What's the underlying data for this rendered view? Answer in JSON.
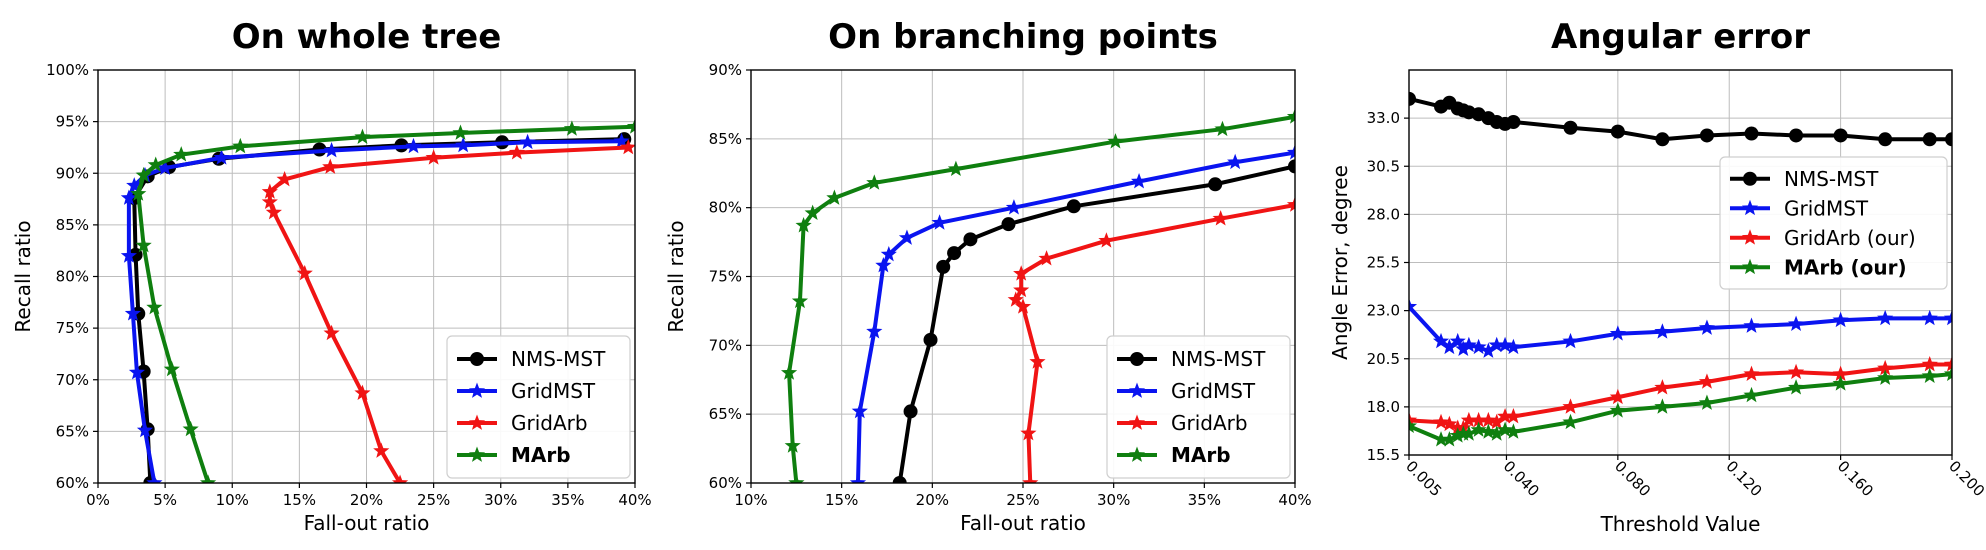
{
  "chart_data": [
    {
      "type": "line",
      "title": "On whole tree",
      "xlabel": "Fall-out ratio",
      "ylabel": "Recall ratio",
      "xlim": [
        0,
        40
      ],
      "ylim": [
        60,
        100
      ],
      "x_ticks": [
        0,
        5,
        10,
        15,
        20,
        25,
        30,
        35,
        40
      ],
      "x_tick_labels": [
        "0%",
        "5%",
        "10%",
        "15%",
        "20%",
        "25%",
        "30%",
        "35%",
        "40%"
      ],
      "y_ticks": [
        60,
        65,
        70,
        75,
        80,
        85,
        90,
        95,
        100
      ],
      "y_tick_labels": [
        "60%",
        "65%",
        "70%",
        "75%",
        "80%",
        "85%",
        "90%",
        "95%",
        "100%"
      ],
      "grid": true,
      "legend_position": "bottom-right",
      "series": [
        {
          "name": "NMS-MST",
          "color": "#000000",
          "marker": "circle",
          "bold": false,
          "points": [
            [
              3.9,
              60
            ],
            [
              3.7,
              65.2
            ],
            [
              3.4,
              70.8
            ],
            [
              3.0,
              76.4
            ],
            [
              2.8,
              82.1
            ],
            [
              2.7,
              87.6
            ],
            [
              3.7,
              89.7
            ],
            [
              5.3,
              90.6
            ],
            [
              9.0,
              91.4
            ],
            [
              16.5,
              92.3
            ],
            [
              22.6,
              92.7
            ],
            [
              30.1,
              93.0
            ],
            [
              39.2,
              93.3
            ]
          ]
        },
        {
          "name": "GridMST",
          "color": "#0a14f0",
          "marker": "star",
          "bold": false,
          "points": [
            [
              4.2,
              60
            ],
            [
              3.5,
              65.1
            ],
            [
              2.9,
              70.7
            ],
            [
              2.6,
              76.4
            ],
            [
              2.3,
              82.0
            ],
            [
              2.3,
              87.6
            ],
            [
              2.7,
              88.8
            ],
            [
              3.5,
              89.8
            ],
            [
              5.0,
              90.5
            ],
            [
              9.2,
              91.5
            ],
            [
              17.4,
              92.2
            ],
            [
              23.5,
              92.6
            ],
            [
              27.2,
              92.7
            ],
            [
              32.0,
              93.0
            ],
            [
              39.0,
              93.1
            ]
          ]
        },
        {
          "name": "GridArb",
          "color": "#f01414",
          "marker": "star",
          "bold": false,
          "points": [
            [
              22.5,
              60
            ],
            [
              21.1,
              63.1
            ],
            [
              19.7,
              68.7
            ],
            [
              17.4,
              74.5
            ],
            [
              15.4,
              80.3
            ],
            [
              13.1,
              86.2
            ],
            [
              12.8,
              87.2
            ],
            [
              12.8,
              88.2
            ],
            [
              13.9,
              89.4
            ],
            [
              17.3,
              90.6
            ],
            [
              25.0,
              91.5
            ],
            [
              31.2,
              92.0
            ],
            [
              39.5,
              92.5
            ]
          ]
        },
        {
          "name": "MArb",
          "color": "#0f7f0f",
          "marker": "star",
          "bold": true,
          "points": [
            [
              8.2,
              60
            ],
            [
              6.9,
              65.2
            ],
            [
              5.5,
              71.0
            ],
            [
              4.2,
              77.0
            ],
            [
              3.4,
              83.0
            ],
            [
              3.0,
              88.0
            ],
            [
              3.4,
              89.8
            ],
            [
              4.3,
              90.8
            ],
            [
              6.2,
              91.8
            ],
            [
              10.6,
              92.6
            ],
            [
              19.7,
              93.5
            ],
            [
              27.0,
              93.9
            ],
            [
              35.3,
              94.3
            ],
            [
              40,
              94.5
            ]
          ]
        }
      ]
    },
    {
      "type": "line",
      "title": "On branching points",
      "xlabel": "Fall-out ratio",
      "ylabel": "Recall ratio",
      "xlim": [
        10,
        40
      ],
      "ylim": [
        60,
        90
      ],
      "x_ticks": [
        10,
        15,
        20,
        25,
        30,
        35,
        40
      ],
      "x_tick_labels": [
        "10%",
        "15%",
        "20%",
        "25%",
        "30%",
        "35%",
        "40%"
      ],
      "y_ticks": [
        60,
        65,
        70,
        75,
        80,
        85,
        90
      ],
      "y_tick_labels": [
        "60%",
        "65%",
        "70%",
        "75%",
        "80%",
        "85%",
        "90%"
      ],
      "grid": true,
      "legend_position": "bottom-right",
      "series": [
        {
          "name": "NMS-MST",
          "color": "#000000",
          "marker": "circle",
          "bold": false,
          "points": [
            [
              18.2,
              60
            ],
            [
              18.8,
              65.2
            ],
            [
              19.9,
              70.4
            ],
            [
              20.6,
              75.7
            ],
            [
              21.2,
              76.7
            ],
            [
              22.1,
              77.7
            ],
            [
              24.2,
              78.8
            ],
            [
              27.8,
              80.1
            ],
            [
              35.6,
              81.7
            ],
            [
              40,
              83.0
            ]
          ]
        },
        {
          "name": "GridMST",
          "color": "#0a14f0",
          "marker": "star",
          "bold": false,
          "points": [
            [
              15.9,
              60
            ],
            [
              16.0,
              65.2
            ],
            [
              16.8,
              71.0
            ],
            [
              17.3,
              75.8
            ],
            [
              17.6,
              76.6
            ],
            [
              18.6,
              77.8
            ],
            [
              20.4,
              78.9
            ],
            [
              24.5,
              80.0
            ],
            [
              31.4,
              81.9
            ],
            [
              36.7,
              83.3
            ],
            [
              40,
              84.0
            ]
          ]
        },
        {
          "name": "GridArb",
          "color": "#f01414",
          "marker": "star",
          "bold": false,
          "points": [
            [
              25.4,
              60
            ],
            [
              25.3,
              63.6
            ],
            [
              25.8,
              68.8
            ],
            [
              25.0,
              72.8
            ],
            [
              24.6,
              73.3
            ],
            [
              24.9,
              74.0
            ],
            [
              24.9,
              75.2
            ],
            [
              26.3,
              76.3
            ],
            [
              29.6,
              77.6
            ],
            [
              35.9,
              79.2
            ],
            [
              40,
              80.2
            ]
          ]
        },
        {
          "name": "MArb",
          "color": "#0f7f0f",
          "marker": "star",
          "bold": true,
          "points": [
            [
              12.5,
              60
            ],
            [
              12.3,
              62.7
            ],
            [
              12.1,
              68.0
            ],
            [
              12.7,
              73.2
            ],
            [
              12.9,
              78.7
            ],
            [
              13.4,
              79.6
            ],
            [
              14.6,
              80.7
            ],
            [
              16.8,
              81.8
            ],
            [
              21.3,
              82.8
            ],
            [
              30.1,
              84.8
            ],
            [
              36.0,
              85.7
            ],
            [
              40,
              86.6
            ]
          ]
        }
      ]
    },
    {
      "type": "line",
      "title": "Angular error",
      "xlabel": "Threshold Value",
      "ylabel": "Angle Error, degree",
      "xlim": [
        0.005,
        0.2
      ],
      "ylim": [
        15.5,
        35.5
      ],
      "x_ticks": [
        0.005,
        0.04,
        0.08,
        0.12,
        0.16,
        0.2
      ],
      "x_tick_labels": [
        "0.005",
        "0.040",
        "0.080",
        "0.120",
        "0.160",
        "0.200"
      ],
      "y_ticks": [
        15.5,
        18.0,
        20.5,
        23.0,
        25.5,
        28.0,
        30.5,
        33.0
      ],
      "y_tick_labels": [
        "15.5",
        "18.0",
        "20.5",
        "23.0",
        "25.5",
        "28.0",
        "30.5",
        "33.0"
      ],
      "grid": true,
      "legend_position": "center-right",
      "series": [
        {
          "name": "NMS-MST",
          "color": "#000000",
          "marker": "circle",
          "bold": false,
          "points": [
            [
              0.005,
              34.0
            ],
            [
              0.0165,
              33.6
            ],
            [
              0.0195,
              33.8
            ],
            [
              0.0225,
              33.5
            ],
            [
              0.0245,
              33.4
            ],
            [
              0.0265,
              33.3
            ],
            [
              0.03,
              33.2
            ],
            [
              0.0335,
              33.0
            ],
            [
              0.0365,
              32.8
            ],
            [
              0.0395,
              32.7
            ],
            [
              0.0425,
              32.8
            ],
            [
              0.063,
              32.5
            ],
            [
              0.08,
              32.3
            ],
            [
              0.096,
              31.9
            ],
            [
              0.112,
              32.1
            ],
            [
              0.128,
              32.2
            ],
            [
              0.144,
              32.1
            ],
            [
              0.16,
              32.1
            ],
            [
              0.176,
              31.9
            ],
            [
              0.192,
              31.9
            ],
            [
              0.2,
              31.9
            ]
          ]
        },
        {
          "name": "GridMST",
          "color": "#0a14f0",
          "marker": "star",
          "bold": false,
          "points": [
            [
              0.005,
              23.2
            ],
            [
              0.0165,
              21.4
            ],
            [
              0.0195,
              21.1
            ],
            [
              0.0225,
              21.4
            ],
            [
              0.0245,
              21.0
            ],
            [
              0.0265,
              21.2
            ],
            [
              0.03,
              21.1
            ],
            [
              0.0335,
              20.9
            ],
            [
              0.0365,
              21.2
            ],
            [
              0.0395,
              21.2
            ],
            [
              0.0425,
              21.1
            ],
            [
              0.063,
              21.4
            ],
            [
              0.08,
              21.8
            ],
            [
              0.096,
              21.9
            ],
            [
              0.112,
              22.1
            ],
            [
              0.128,
              22.2
            ],
            [
              0.144,
              22.3
            ],
            [
              0.16,
              22.5
            ],
            [
              0.176,
              22.6
            ],
            [
              0.192,
              22.6
            ],
            [
              0.2,
              22.6
            ]
          ]
        },
        {
          "name": "GridArb (our)",
          "color": "#f01414",
          "marker": "star",
          "bold": false,
          "points": [
            [
              0.005,
              17.3
            ],
            [
              0.0165,
              17.2
            ],
            [
              0.0195,
              17.1
            ],
            [
              0.0225,
              16.9
            ],
            [
              0.0245,
              16.9
            ],
            [
              0.0265,
              17.3
            ],
            [
              0.03,
              17.3
            ],
            [
              0.0335,
              17.3
            ],
            [
              0.0365,
              17.2
            ],
            [
              0.0395,
              17.5
            ],
            [
              0.0425,
              17.5
            ],
            [
              0.063,
              18.0
            ],
            [
              0.08,
              18.5
            ],
            [
              0.096,
              19.0
            ],
            [
              0.112,
              19.3
            ],
            [
              0.128,
              19.7
            ],
            [
              0.144,
              19.8
            ],
            [
              0.16,
              19.7
            ],
            [
              0.176,
              20.0
            ],
            [
              0.192,
              20.2
            ],
            [
              0.2,
              20.2
            ]
          ]
        },
        {
          "name": "MArb (our)",
          "color": "#0f7f0f",
          "marker": "star",
          "bold": true,
          "points": [
            [
              0.005,
              17.0
            ],
            [
              0.0165,
              16.3
            ],
            [
              0.0195,
              16.3
            ],
            [
              0.0225,
              16.5
            ],
            [
              0.0245,
              16.6
            ],
            [
              0.0265,
              16.6
            ],
            [
              0.03,
              16.8
            ],
            [
              0.0335,
              16.7
            ],
            [
              0.0365,
              16.6
            ],
            [
              0.0395,
              16.8
            ],
            [
              0.0425,
              16.7
            ],
            [
              0.063,
              17.2
            ],
            [
              0.08,
              17.8
            ],
            [
              0.096,
              18.0
            ],
            [
              0.112,
              18.2
            ],
            [
              0.128,
              18.6
            ],
            [
              0.144,
              19.0
            ],
            [
              0.16,
              19.2
            ],
            [
              0.176,
              19.5
            ],
            [
              0.192,
              19.6
            ],
            [
              0.2,
              19.7
            ]
          ]
        }
      ]
    }
  ]
}
